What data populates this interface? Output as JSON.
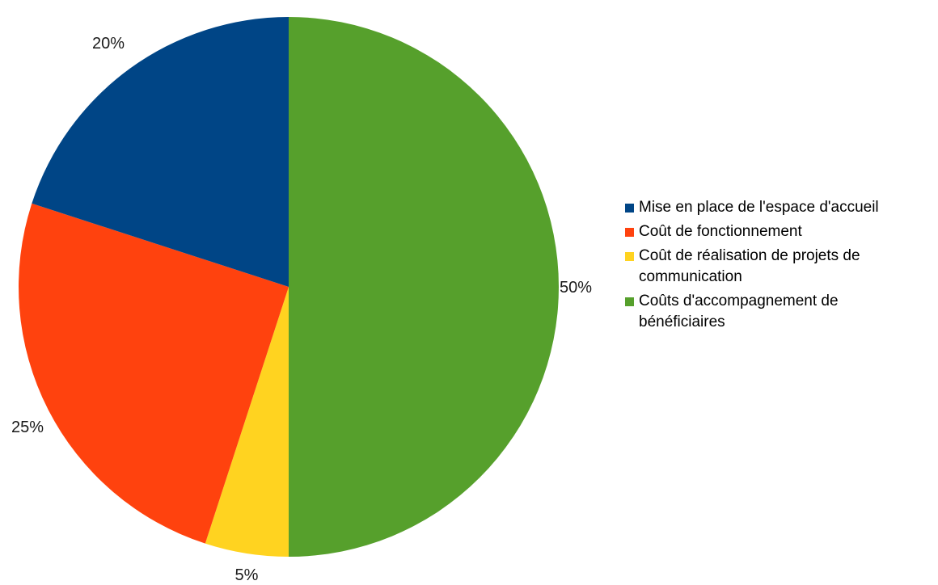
{
  "chart_data": {
    "type": "pie",
    "title": "",
    "slices": [
      {
        "label": "Coûts d'accompagnement de bénéficiaires",
        "value": 50,
        "value_label": "50%",
        "color": "#56a02c"
      },
      {
        "label": "Coût de réalisation de projets de communication",
        "value": 5,
        "value_label": "5%",
        "color": "#ffd320"
      },
      {
        "label": "Coût de fonctionnement",
        "value": 25,
        "value_label": "25%",
        "color": "#ff420e"
      },
      {
        "label": "Mise en place de l'espace d'accueil",
        "value": 20,
        "value_label": "20%",
        "color": "#004586"
      }
    ],
    "start": "12 o'clock",
    "direction": "clockwise",
    "legend_position": "right"
  },
  "legend": [
    {
      "label": "Mise en place de l'espace d'accueil",
      "color": "#004586"
    },
    {
      "label": "Coût de fonctionnement",
      "color": "#ff420e"
    },
    {
      "label": "Coût de réalisation de projets de communication",
      "color": "#ffd320"
    },
    {
      "label": "Coûts d'accompagnement de bénéficiaires",
      "color": "#56a02c"
    }
  ]
}
